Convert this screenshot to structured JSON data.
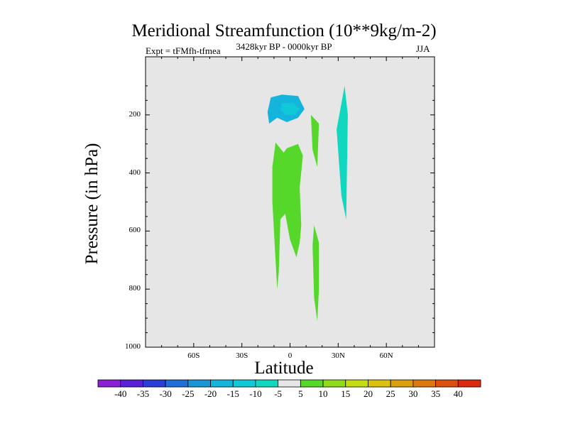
{
  "chart_data": {
    "type": "contour",
    "title": "Meridional Streamfunction (10**9kg/m-2)",
    "left_string": "Expt = tFMfh-tfmea",
    "center_string": "3428kyr BP - 0000kyr BP",
    "right_string": "JJA",
    "xlabel": "Latitude",
    "ylabel": "Pressure (in hPa)",
    "xlim": [
      -90,
      90
    ],
    "ylim": [
      1000,
      0
    ],
    "x_ticks": [
      {
        "value": -60,
        "label": "60S"
      },
      {
        "value": -30,
        "label": "30S"
      },
      {
        "value": 0,
        "label": "0"
      },
      {
        "value": 30,
        "label": "30N"
      },
      {
        "value": 60,
        "label": "60N"
      }
    ],
    "y_ticks": [
      {
        "value": 200,
        "label": "200"
      },
      {
        "value": 400,
        "label": "400"
      },
      {
        "value": 600,
        "label": "600"
      },
      {
        "value": 800,
        "label": "800"
      },
      {
        "value": 1000,
        "label": "1000"
      }
    ],
    "background_color": "#e6e6e6",
    "colorbar": {
      "levels": [
        "-40",
        "-35",
        "-30",
        "-25",
        "-20",
        "-15",
        "-10",
        "-5",
        "5",
        "10",
        "15",
        "20",
        "25",
        "30",
        "35",
        "40"
      ],
      "colors": [
        "#8a1fd6",
        "#5a20d8",
        "#2a3fd8",
        "#1f6fd8",
        "#1a96d6",
        "#14b4dc",
        "#10c8d8",
        "#10d8c0",
        "#e6e6e6",
        "#55d82a",
        "#8edc1c",
        "#c4dc12",
        "#dcc00e",
        "#dca00e",
        "#dc780e",
        "#dc5010",
        "#dc2a0e"
      ]
    },
    "regions": [
      {
        "name": "upper-tropical-negative",
        "color": "#14b4dc",
        "points": [
          [
            -12,
            140
          ],
          [
            -5,
            130
          ],
          [
            5,
            135
          ],
          [
            9,
            180
          ],
          [
            5,
            210
          ],
          [
            -2,
            225
          ],
          [
            -8,
            210
          ],
          [
            -13,
            230
          ],
          [
            -14,
            190
          ]
        ]
      },
      {
        "name": "upper-core-negative",
        "color": "#10c8d8",
        "points": [
          [
            -5,
            160
          ],
          [
            2,
            158
          ],
          [
            6,
            180
          ],
          [
            3,
            200
          ],
          [
            -3,
            200
          ],
          [
            -6,
            182
          ]
        ]
      },
      {
        "name": "subtropical-streak-negative",
        "color": "#10d8c0",
        "points": [
          [
            29,
            250
          ],
          [
            34,
            100
          ],
          [
            36,
            200
          ],
          [
            35,
            560
          ],
          [
            32,
            480
          ]
        ]
      },
      {
        "name": "central-positive",
        "color": "#55d82a",
        "points": [
          [
            -11,
            380
          ],
          [
            -9,
            295
          ],
          [
            -4,
            330
          ],
          [
            -2,
            315
          ],
          [
            5,
            300
          ],
          [
            8,
            340
          ],
          [
            6,
            450
          ],
          [
            7,
            580
          ],
          [
            6,
            640
          ],
          [
            4,
            690
          ],
          [
            0,
            630
          ],
          [
            -3,
            540
          ],
          [
            -6,
            560
          ],
          [
            -7,
            740
          ],
          [
            -8,
            800
          ],
          [
            -9,
            700
          ],
          [
            -11,
            500
          ]
        ]
      },
      {
        "name": "upper-positive-streak",
        "color": "#55d82a",
        "points": [
          [
            13,
            200
          ],
          [
            18,
            230
          ],
          [
            17,
            380
          ],
          [
            14,
            320
          ]
        ]
      },
      {
        "name": "lower-positive-streak",
        "color": "#55d82a",
        "points": [
          [
            15,
            580
          ],
          [
            18,
            640
          ],
          [
            18,
            800
          ],
          [
            17,
            910
          ],
          [
            15,
            830
          ],
          [
            14,
            650
          ]
        ]
      }
    ]
  }
}
